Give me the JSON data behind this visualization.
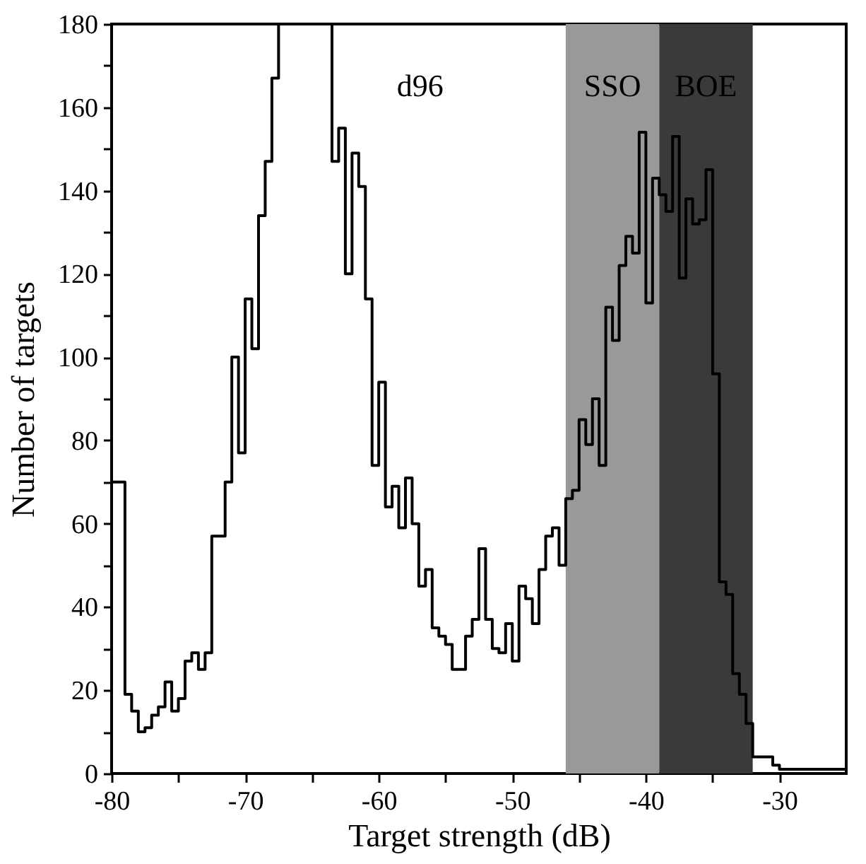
{
  "chart_data": {
    "type": "histogram",
    "xlabel": "Target strength (dB)",
    "ylabel": "Number of targets",
    "bins": [
      -80,
      -79.5,
      -79,
      -78.5,
      -78,
      -77.5,
      -77,
      -76.5,
      -76,
      -75.5,
      -75,
      -74.5,
      -74,
      -73.5,
      -73,
      -72.5,
      -72,
      -71.5,
      -71,
      -70.5,
      -70,
      -69.5,
      -69,
      -68.5,
      -68,
      -67.5,
      -67,
      -66.5,
      -66,
      -65.5,
      -65,
      -64.5,
      -64,
      -63.5,
      -63,
      -62.5,
      -62,
      -61.5,
      -61,
      -60.5,
      -60,
      -59.5,
      -59,
      -58.5,
      -58,
      -57.5,
      -57,
      -56.5,
      -56,
      -55.5,
      -55,
      -54.5,
      -54,
      -53.5,
      -53,
      -52.5,
      -52,
      -51.5,
      -51,
      -50.5,
      -50,
      -49.5,
      -49,
      -48.5,
      -48,
      -47.5,
      -47,
      -46.5,
      -46,
      -45.5,
      -45,
      -44.5,
      -44,
      -43.5,
      -43,
      -42.5,
      -42,
      -41.5,
      -41,
      -40.5,
      -40,
      -39.5,
      -39,
      -38.5,
      -38,
      -37.5,
      -37,
      -36.5,
      -36,
      -35.5,
      -35,
      -34.5,
      -34,
      -33.5,
      -33,
      -32.5,
      -32,
      -31.5,
      -31,
      -30.5,
      -30,
      -29.5,
      -29,
      -28.5,
      -28,
      -27.5,
      -27,
      -26.5,
      -26,
      -25.5,
      -25
    ],
    "values": [
      70,
      70,
      19,
      15,
      10,
      11,
      14,
      16,
      22,
      15,
      18,
      27,
      29,
      25,
      29,
      57,
      57,
      70,
      100,
      77,
      114,
      102,
      134,
      147,
      167,
      180,
      180,
      180,
      180,
      180,
      180,
      180,
      180,
      147,
      155,
      120,
      149,
      141,
      114,
      74,
      94,
      64,
      69,
      59,
      71,
      60,
      45,
      49,
      35,
      33,
      31,
      25,
      25,
      33,
      37,
      54,
      37,
      30,
      29,
      36,
      27,
      45,
      42,
      36,
      49,
      57,
      59,
      50,
      66,
      68,
      85,
      79,
      90,
      74,
      112,
      104,
      122,
      129,
      125,
      154,
      113,
      143,
      139,
      135,
      153,
      119,
      138,
      132,
      133,
      145,
      96,
      46,
      43,
      24,
      19,
      12,
      4,
      4,
      4,
      2,
      1,
      1,
      1,
      1,
      1,
      1,
      1,
      1,
      1,
      1
    ],
    "color": "#000000",
    "xlim": [
      -80,
      -25
    ],
    "xticks": [
      -80,
      {
        "value": -75,
        "label": null
      },
      -70,
      {
        "value": -65,
        "label": null
      },
      -60,
      {
        "value": -55,
        "label": null
      },
      -50,
      {
        "value": -45,
        "label": null
      },
      -40,
      {
        "value": -35,
        "label": null
      },
      -30
    ],
    "ylim": [
      0,
      180
    ],
    "yticks": [
      0,
      {
        "value": 10,
        "label": null
      },
      20,
      {
        "value": 30,
        "label": null
      },
      40,
      {
        "value": 50,
        "label": null
      },
      60,
      {
        "value": 70,
        "label": null
      },
      80,
      {
        "value": 90,
        "label": null
      },
      100,
      {
        "value": 110,
        "label": null
      },
      120,
      {
        "value": 130,
        "label": null
      },
      140,
      {
        "value": 150,
        "label": null
      },
      160,
      {
        "value": 170,
        "label": null
      },
      180
    ],
    "bands": [
      {
        "axis": "x",
        "from": -46,
        "to": -39,
        "label": "SSO",
        "color": "#999999"
      },
      {
        "axis": "x",
        "from": -39,
        "to": -32,
        "label": "BOE",
        "color": "#3a3a3a"
      }
    ],
    "annotations": [
      "d96"
    ],
    "grid": false
  }
}
